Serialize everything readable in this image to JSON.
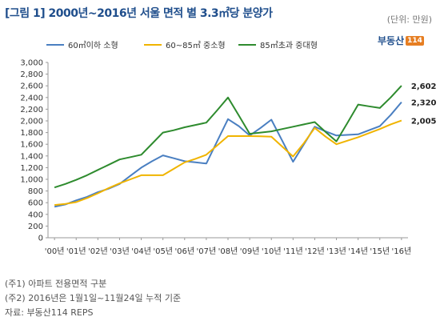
{
  "header": {
    "title": "[그림 1] 2000년~2016년 서울 면적 별 3.3㎡당 분양가",
    "unit": "(단위: 만원)",
    "brand": "부동산",
    "brand_num": "114"
  },
  "notes": {
    "note1": "(주1) 아파트 전용면적 구분",
    "note2": "(주2) 2016년은 1월1일~11월24일 누적 기준",
    "source": "자료: 부동산114 REPS"
  },
  "colors": {
    "small": "#4a7fc1",
    "medium": "#f0b400",
    "large": "#2e8b2e"
  },
  "chart_data": {
    "type": "line",
    "title": "",
    "xlabel": "",
    "ylabel": "",
    "ylim": [
      0,
      3000
    ],
    "yticks": [
      0,
      200,
      400,
      600,
      800,
      1000,
      1200,
      1400,
      1600,
      1800,
      2000,
      2200,
      2400,
      2600,
      2800,
      3000
    ],
    "ytick_labels": [
      "0",
      "200",
      "400",
      "600",
      "800",
      "1,000",
      "1,200",
      "1,400",
      "1,600",
      "1,800",
      "2,000",
      "2,200",
      "2,400",
      "2,600",
      "2,800",
      "3,000"
    ],
    "x": [
      2000,
      2000.5,
      2001,
      2001.5,
      2002,
      2002.5,
      2003,
      2003.5,
      2004,
      2004.5,
      2005,
      2005.5,
      2006,
      2006.5,
      2007,
      2007.5,
      2008,
      2008.5,
      2009,
      2009.5,
      2010,
      2010.5,
      2011,
      2011.5,
      2012,
      2012.5,
      2013,
      2013.5,
      2014,
      2014.5,
      2015,
      2015.5,
      2016
    ],
    "xticks": [
      2000,
      2001,
      2002,
      2003,
      2004,
      2005,
      2006,
      2007,
      2008,
      2009,
      2010,
      2011,
      2012,
      2013,
      2014,
      2015,
      2016
    ],
    "xtick_labels": [
      "'00년",
      "'01년",
      "'02년",
      "'03년",
      "'04년",
      "'05년",
      "'06년",
      "'07년",
      "'08년",
      "'09년",
      "'10년",
      "'11년",
      "'12년",
      "'13년",
      "'14년",
      "'15년",
      "'16년"
    ],
    "grid": false,
    "legend": "top",
    "series": [
      {
        "name": "60㎡이하 소형",
        "color": "#4a7fc1",
        "values": [
          530,
          570,
          640,
          700,
          780,
          840,
          920,
          1060,
          1200,
          1310,
          1410,
          1360,
          1310,
          1290,
          1270,
          1650,
          2030,
          1910,
          1750,
          1880,
          2020,
          1660,
          1300,
          1600,
          1900,
          1820,
          1750,
          1760,
          1770,
          1840,
          1910,
          2100,
          2320
        ]
      },
      {
        "name": "60~85㎡ 중소형",
        "color": "#f0b400",
        "values": [
          560,
          580,
          610,
          680,
          760,
          850,
          930,
          1000,
          1070,
          1070,
          1070,
          1180,
          1290,
          1350,
          1420,
          1580,
          1740,
          1740,
          1740,
          1735,
          1730,
          1560,
          1390,
          1620,
          1880,
          1730,
          1600,
          1660,
          1720,
          1790,
          1860,
          1940,
          2005
        ]
      },
      {
        "name": "85㎡초과 중대형",
        "color": "#2e8b2e",
        "values": [
          860,
          920,
          990,
          1070,
          1160,
          1250,
          1340,
          1380,
          1420,
          1610,
          1800,
          1840,
          1890,
          1930,
          1970,
          2180,
          2400,
          2090,
          1780,
          1800,
          1820,
          1860,
          1900,
          1940,
          1980,
          1810,
          1650,
          1960,
          2280,
          2250,
          2220,
          2400,
          2602
        ]
      }
    ],
    "end_labels": [
      "2,602",
      "2,320",
      "2,005"
    ]
  }
}
